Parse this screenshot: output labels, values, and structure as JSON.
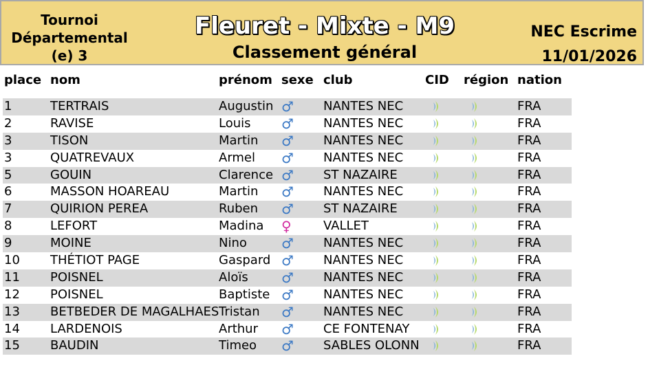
{
  "header": {
    "left_lines": [
      "Tournoi",
      "Départemental",
      "(e) 3"
    ],
    "title": "Fleuret - Mixte - M9",
    "subtitle": "Classement général",
    "club": "NEC Escrime",
    "date": "11/01/2026"
  },
  "columns": {
    "place": "place",
    "nom": "nom",
    "prenom": "prénom",
    "sexe": "sexe",
    "club": "club",
    "cid": "CID",
    "region": "région",
    "nation": "nation"
  },
  "colors": {
    "header_bg": "#f1d783",
    "row_alt": "#d9d9d9",
    "male": "#3a78c4",
    "female": "#d22ca0",
    "mark_green": "#b6d96b",
    "mark_blue": "#7fb0d8"
  },
  "icons": {
    "male": "male-symbol-icon",
    "female": "female-symbol-icon",
    "cid": "crescent-mark-icon",
    "region": "crescent-mark-icon"
  },
  "rows": [
    {
      "place": "1",
      "nom": "TERTRAIS",
      "prenom": "Augustin",
      "sexe": "♂",
      "club": "NANTES NEC",
      "nation": "FRA"
    },
    {
      "place": "2",
      "nom": "RAVISE",
      "prenom": "Louis",
      "sexe": "♂",
      "club": "NANTES NEC",
      "nation": "FRA"
    },
    {
      "place": "3",
      "nom": "TISON",
      "prenom": "Martin",
      "sexe": "♂",
      "club": "NANTES NEC",
      "nation": "FRA"
    },
    {
      "place": "3",
      "nom": "QUATREVAUX",
      "prenom": "Armel",
      "sexe": "♂",
      "club": "NANTES NEC",
      "nation": "FRA"
    },
    {
      "place": "5",
      "nom": "GOUIN",
      "prenom": "Clarence",
      "sexe": "♂",
      "club": "ST NAZAIRE",
      "nation": "FRA"
    },
    {
      "place": "6",
      "nom": "MASSON HOAREAU",
      "prenom": "Martin",
      "sexe": "♂",
      "club": "NANTES NEC",
      "nation": "FRA"
    },
    {
      "place": "7",
      "nom": "QUIRION PEREA",
      "prenom": "Ruben",
      "sexe": "♂",
      "club": "ST NAZAIRE",
      "nation": "FRA"
    },
    {
      "place": "8",
      "nom": "LEFORT",
      "prenom": "Madina",
      "sexe": "♀",
      "club": "VALLET",
      "nation": "FRA"
    },
    {
      "place": "9",
      "nom": "MOINE",
      "prenom": "Nino",
      "sexe": "♂",
      "club": "NANTES NEC",
      "nation": "FRA"
    },
    {
      "place": "10",
      "nom": "THÉTIOT PAGE",
      "prenom": "Gaspard",
      "sexe": "♂",
      "club": "NANTES NEC",
      "nation": "FRA"
    },
    {
      "place": "11",
      "nom": "POISNEL",
      "prenom": "Aloïs",
      "sexe": "♂",
      "club": "NANTES NEC",
      "nation": "FRA"
    },
    {
      "place": "12",
      "nom": "POISNEL",
      "prenom": "Baptiste",
      "sexe": "♂",
      "club": "NANTES NEC",
      "nation": "FRA"
    },
    {
      "place": "13",
      "nom": "BETBEDER DE MAGALHAES",
      "prenom": "Tristan",
      "sexe": "♂",
      "club": "NANTES NEC",
      "nation": "FRA"
    },
    {
      "place": "14",
      "nom": "LARDENOIS",
      "prenom": "Arthur",
      "sexe": "♂",
      "club": "CE FONTENAY",
      "nation": "FRA"
    },
    {
      "place": "15",
      "nom": "BAUDIN",
      "prenom": "Timeo",
      "sexe": "♂",
      "club": "SABLES OLONN",
      "nation": "FRA"
    }
  ]
}
